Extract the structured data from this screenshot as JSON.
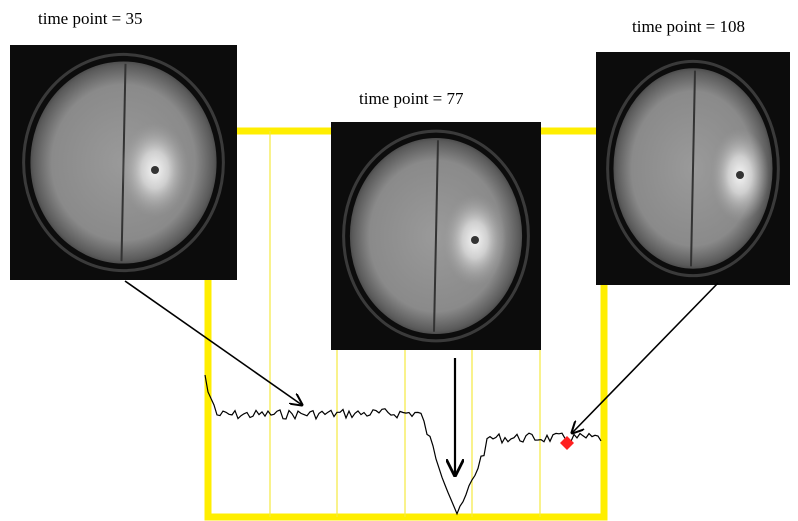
{
  "figure": {
    "panels": [
      {
        "label": "time point = 35"
      },
      {
        "label": "time point = 77"
      },
      {
        "label": "time point = 108"
      }
    ]
  }
}
